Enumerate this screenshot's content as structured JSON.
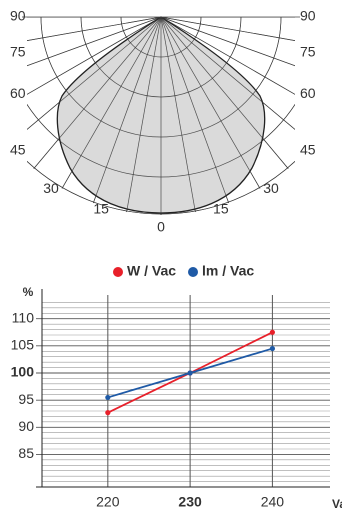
{
  "polar": {
    "left_labels": [
      90,
      75,
      60,
      45,
      30,
      15
    ],
    "center_label": 0,
    "right_labels": [
      90,
      75,
      60,
      45,
      30,
      15
    ]
  },
  "chart_data": {
    "type": "line",
    "y_unit": "%",
    "x_unit": "Vac",
    "x": [
      220,
      230,
      240
    ],
    "series": [
      {
        "name": "W / Vac",
        "color": "#e8202a",
        "values": [
          92.7,
          100,
          107.5
        ]
      },
      {
        "name": "lm / Vac",
        "color": "#1f5aa6",
        "values": [
          95.5,
          100,
          104.5
        ]
      }
    ],
    "xlim": [
      212,
      247
    ],
    "xticks": [
      220,
      230,
      240
    ],
    "ylim": [
      79,
      114
    ],
    "yticks": [
      85,
      90,
      95,
      100,
      105,
      110
    ],
    "yminor_ticks": [
      80,
      81,
      82,
      83,
      84,
      86,
      87,
      88,
      89,
      91,
      92,
      93,
      94,
      96,
      97,
      98,
      99,
      101,
      102,
      103,
      104,
      106,
      107,
      108,
      109,
      111,
      112,
      113
    ],
    "highlight_x": 230,
    "highlight_y": 100,
    "grid": true
  }
}
